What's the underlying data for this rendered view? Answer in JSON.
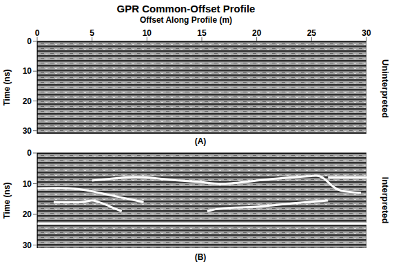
{
  "chart_data": [
    {
      "type": "line",
      "title": "GPR Common-Offset Profile",
      "x_label": "Offset Along Profile (m)",
      "y_label": "Time (ns)",
      "panel": "(A)",
      "side_label": "Uninterpreted",
      "xlim": [
        0,
        30
      ],
      "xticks": [
        0,
        5,
        10,
        15,
        20,
        25,
        30
      ],
      "ylim": [
        0,
        31
      ],
      "yticks": [
        0,
        10,
        20,
        30
      ],
      "series": []
    },
    {
      "type": "line",
      "y_label": "Time (ns)",
      "panel": "(B)",
      "side_label": "Interpreted",
      "tick_labels": "y",
      "xlim": [
        0,
        30
      ],
      "xticks": [
        0,
        5,
        10,
        15,
        20,
        25,
        30
      ],
      "ylim": [
        0,
        31
      ],
      "yticks": [
        0,
        10,
        20,
        30
      ],
      "series": [
        {
          "color": "#ffffff",
          "marker": "none",
          "line_style": "solid",
          "x": [
            5,
            8,
            10,
            13,
            15,
            17,
            20,
            23,
            25,
            26,
            27,
            28,
            29.5
          ],
          "values": [
            9,
            8,
            8,
            9,
            9.5,
            10,
            9,
            8,
            7.5,
            8,
            11,
            12.5,
            13
          ]
        },
        {
          "color": "#ffffff",
          "marker": "none",
          "line_style": "solid",
          "x": [
            26.5,
            30
          ],
          "values": [
            8,
            8
          ]
        },
        {
          "color": "#ffffff",
          "marker": "none",
          "line_style": "solid",
          "x": [
            0,
            3,
            5,
            7,
            9,
            9.7
          ],
          "values": [
            11.5,
            11.5,
            12.5,
            14,
            15.5,
            16
          ]
        },
        {
          "color": "#ffffff",
          "marker": "none",
          "line_style": "solid",
          "x": [
            1.5,
            4,
            5,
            6,
            7,
            7.7
          ],
          "values": [
            16,
            16,
            15.5,
            16.5,
            18,
            19
          ]
        },
        {
          "color": "#ffffff",
          "marker": "none",
          "line_style": "solid",
          "x": [
            15.5,
            17,
            20,
            23,
            26.5
          ],
          "values": [
            19,
            18,
            17.5,
            16.5,
            15.5
          ]
        },
        {
          "color": "#ffffff",
          "marker": "none",
          "line_style": "solid",
          "x": [
            0,
            30
          ],
          "values": [
            23,
            23
          ]
        }
      ]
    }
  ]
}
